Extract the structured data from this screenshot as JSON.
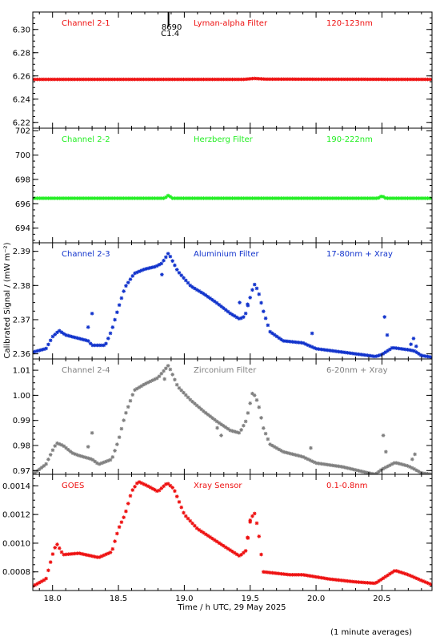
{
  "chart_data": {
    "type": "scatter",
    "xlabel": "Time / h UTC, 29 May 2025",
    "ylabel": "Calibrated Signal / (mW m⁻²)",
    "footnote": "(1 minute averages)",
    "xlim": [
      17.85,
      20.88
    ],
    "x_ticks": [
      18.0,
      18.5,
      19.0,
      19.5,
      20.0,
      20.5
    ],
    "x_tick_labels": [
      "18.0",
      "18.5",
      "19.0",
      "19.5",
      "20.0",
      "20.5"
    ],
    "flare_marker": {
      "x": 18.88,
      "labels": [
        "8690",
        "C1.4"
      ]
    },
    "panels": [
      {
        "channel": "Channel 2-1",
        "filter": "Lyman-alpha Filter",
        "band": "120-123nm",
        "color": "#ee1111",
        "ylim": [
          6.215,
          6.315
        ],
        "y_ticks": [
          6.22,
          6.24,
          6.26,
          6.28,
          6.3
        ],
        "y_tick_labels": [
          "6.22",
          "6.24",
          "6.26",
          "6.28",
          "6.30"
        ],
        "keys": [
          [
            17.85,
            6.257
          ],
          [
            19.45,
            6.257
          ],
          [
            19.53,
            6.2578
          ],
          [
            19.62,
            6.2572
          ],
          [
            20.88,
            6.257
          ]
        ]
      },
      {
        "channel": "Channel 2-2",
        "filter": "Herzberg Filter",
        "band": "190-222nm",
        "color": "#22ee22",
        "ylim": [
          692.8,
          702.2
        ],
        "y_ticks": [
          694,
          696,
          698,
          700,
          702
        ],
        "y_tick_labels": [
          "694",
          "696",
          "698",
          "700",
          "702"
        ],
        "keys": [
          [
            17.85,
            696.45
          ],
          [
            18.85,
            696.45
          ],
          [
            18.88,
            696.7
          ],
          [
            18.91,
            696.45
          ],
          [
            20.47,
            696.45
          ],
          [
            20.5,
            696.65
          ],
          [
            20.53,
            696.45
          ],
          [
            20.88,
            696.45
          ]
        ]
      },
      {
        "channel": "Channel 2-3",
        "filter": "Aluminium Filter",
        "band": "17-80nm + Xray",
        "color": "#1133cc",
        "ylim": [
          2.3585,
          2.3925
        ],
        "y_ticks": [
          2.36,
          2.37,
          2.38,
          2.39
        ],
        "y_tick_labels": [
          "2.36",
          "2.37",
          "2.38",
          "2.39"
        ],
        "keys": [
          [
            17.85,
            2.3605
          ],
          [
            17.95,
            2.3615
          ],
          [
            18.0,
            2.365
          ],
          [
            18.05,
            2.3668
          ],
          [
            18.1,
            2.3655
          ],
          [
            18.2,
            2.3645
          ],
          [
            18.27,
            2.3638
          ],
          [
            18.3,
            2.3625
          ],
          [
            18.4,
            2.3625
          ],
          [
            18.45,
            2.367
          ],
          [
            18.5,
            2.3735
          ],
          [
            18.55,
            2.3795
          ],
          [
            18.62,
            2.3835
          ],
          [
            18.7,
            2.3848
          ],
          [
            18.78,
            2.3855
          ],
          [
            18.83,
            2.3865
          ],
          [
            18.88,
            2.3895
          ],
          [
            18.95,
            2.3842
          ],
          [
            19.05,
            2.3798
          ],
          [
            19.15,
            2.3775
          ],
          [
            19.25,
            2.3748
          ],
          [
            19.35,
            2.3718
          ],
          [
            19.42,
            2.3702
          ],
          [
            19.46,
            2.371
          ],
          [
            19.5,
            2.3765
          ],
          [
            19.53,
            2.3805
          ],
          [
            19.56,
            2.3785
          ],
          [
            19.6,
            2.3725
          ],
          [
            19.65,
            2.3665
          ],
          [
            19.75,
            2.3638
          ],
          [
            19.9,
            2.3632
          ],
          [
            20.0,
            2.3615
          ],
          [
            20.2,
            2.3605
          ],
          [
            20.4,
            2.3595
          ],
          [
            20.45,
            2.3592
          ],
          [
            20.5,
            2.3598
          ],
          [
            20.58,
            2.3618
          ],
          [
            20.7,
            2.3612
          ],
          [
            20.75,
            2.3608
          ],
          [
            20.8,
            2.3595
          ],
          [
            20.88,
            2.359
          ]
        ],
        "outliers": [
          [
            18.3,
            2.3718
          ],
          [
            18.27,
            2.3678
          ],
          [
            18.83,
            2.3832
          ],
          [
            19.48,
            2.3745
          ],
          [
            19.42,
            2.375
          ],
          [
            19.97,
            2.366
          ],
          [
            20.52,
            2.3708
          ],
          [
            20.54,
            2.3655
          ],
          [
            20.74,
            2.3645
          ],
          [
            20.72,
            2.3628
          ],
          [
            20.76,
            2.3622
          ]
        ]
      },
      {
        "channel": "Channel 2-4",
        "filter": "Zirconium Filter",
        "band": "6-20nm + Xray",
        "color": "#808080",
        "ylim": [
          0.9685,
          1.0145
        ],
        "y_ticks": [
          0.97,
          0.98,
          0.99,
          1.0,
          1.01
        ],
        "y_tick_labels": [
          "0.97",
          "0.98",
          "0.99",
          "1.00",
          "1.01"
        ],
        "keys": [
          [
            17.85,
            0.9685
          ],
          [
            17.95,
            0.9725
          ],
          [
            18.0,
            0.978
          ],
          [
            18.03,
            0.981
          ],
          [
            18.08,
            0.98
          ],
          [
            18.15,
            0.977
          ],
          [
            18.2,
            0.976
          ],
          [
            18.3,
            0.9745
          ],
          [
            18.35,
            0.9725
          ],
          [
            18.45,
            0.9745
          ],
          [
            18.5,
            0.982
          ],
          [
            18.55,
            0.992
          ],
          [
            18.62,
            1.002
          ],
          [
            18.7,
            1.0045
          ],
          [
            18.8,
            1.007
          ],
          [
            18.88,
            1.012
          ],
          [
            18.95,
            1.0035
          ],
          [
            19.05,
            0.998
          ],
          [
            19.15,
            0.9935
          ],
          [
            19.25,
            0.9895
          ],
          [
            19.35,
            0.986
          ],
          [
            19.42,
            0.985
          ],
          [
            19.47,
            0.99
          ],
          [
            19.52,
            1.0015
          ],
          [
            19.56,
            0.997
          ],
          [
            19.6,
            0.987
          ],
          [
            19.65,
            0.9805
          ],
          [
            19.75,
            0.9775
          ],
          [
            19.9,
            0.9755
          ],
          [
            20.0,
            0.973
          ],
          [
            20.2,
            0.9715
          ],
          [
            20.4,
            0.969
          ],
          [
            20.45,
            0.9685
          ],
          [
            20.5,
            0.9705
          ],
          [
            20.6,
            0.9732
          ],
          [
            20.7,
            0.9718
          ],
          [
            20.75,
            0.9705
          ],
          [
            20.8,
            0.969
          ],
          [
            20.88,
            0.9685
          ]
        ],
        "outliers": [
          [
            18.3,
            0.985
          ],
          [
            18.27,
            0.9795
          ],
          [
            18.85,
            1.0065
          ],
          [
            19.25,
            0.987
          ],
          [
            19.28,
            0.984
          ],
          [
            19.96,
            0.979
          ],
          [
            20.51,
            0.984
          ],
          [
            20.53,
            0.9775
          ],
          [
            20.75,
            0.9765
          ],
          [
            20.73,
            0.9745
          ]
        ]
      },
      {
        "channel": "GOES",
        "filter": "Xray Sensor",
        "band": "0.1-0.8nm",
        "color": "#ee1111",
        "ylim": [
          0.00067,
          0.00148
        ],
        "y_ticks": [
          0.0008,
          0.001,
          0.0012,
          0.0014
        ],
        "y_tick_labels": [
          "0.0008",
          "0.0010",
          "0.0012",
          "0.0014"
        ],
        "keys": [
          [
            17.85,
            0.0007
          ],
          [
            17.95,
            0.00075
          ],
          [
            18.0,
            0.00092
          ],
          [
            18.03,
            0.001
          ],
          [
            18.08,
            0.00092
          ],
          [
            18.2,
            0.00093
          ],
          [
            18.35,
            0.0009
          ],
          [
            18.45,
            0.00094
          ],
          [
            18.5,
            0.0011
          ],
          [
            18.55,
            0.0012
          ],
          [
            18.6,
            0.00136
          ],
          [
            18.65,
            0.00143
          ],
          [
            18.72,
            0.0014
          ],
          [
            18.8,
            0.00136
          ],
          [
            18.87,
            0.00142
          ],
          [
            18.92,
            0.00138
          ],
          [
            19.0,
            0.0012
          ],
          [
            19.1,
            0.0011
          ],
          [
            19.2,
            0.00104
          ],
          [
            19.3,
            0.00098
          ],
          [
            19.42,
            0.00091
          ],
          [
            19.47,
            0.00095
          ],
          [
            19.5,
            0.00115
          ],
          [
            19.53,
            0.00122
          ],
          [
            19.56,
            0.0011
          ],
          [
            19.6,
            0.0008
          ],
          [
            19.7,
            0.00079
          ],
          [
            19.8,
            0.00078
          ],
          [
            19.9,
            0.00078
          ],
          [
            20.1,
            0.00075
          ],
          [
            20.3,
            0.00073
          ],
          [
            20.45,
            0.00072
          ],
          [
            20.5,
            0.00075
          ],
          [
            20.6,
            0.00081
          ],
          [
            20.7,
            0.00078
          ],
          [
            20.8,
            0.00074
          ],
          [
            20.88,
            0.00071
          ]
        ],
        "outliers": [
          [
            19.5,
            0.00116
          ],
          [
            19.48,
            0.00104
          ]
        ]
      }
    ]
  }
}
